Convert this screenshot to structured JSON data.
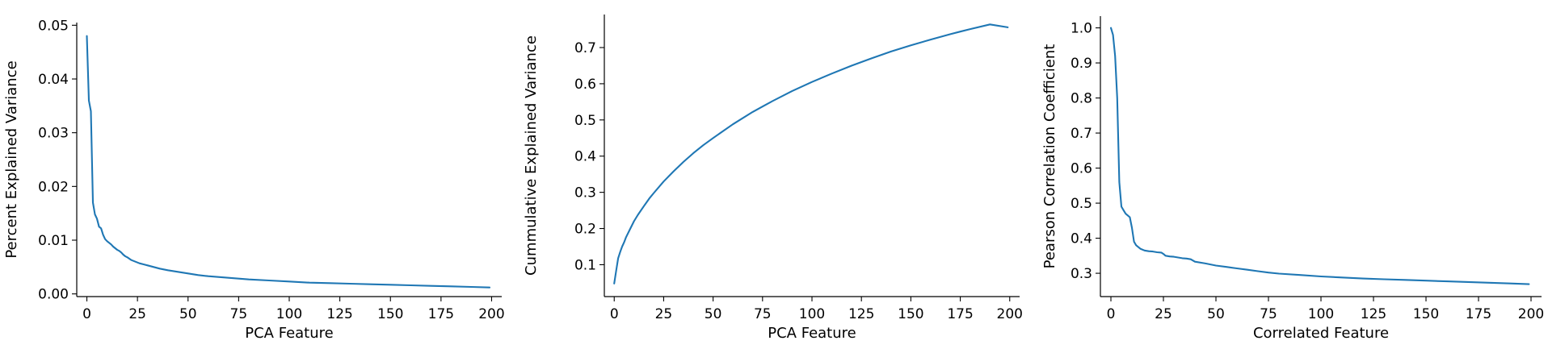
{
  "colors": {
    "line": "#1f77b4",
    "axis": "#000000",
    "background": "#ffffff"
  },
  "chart_data": [
    {
      "type": "line",
      "xlabel": "PCA Feature",
      "ylabel": "Percent Explained Variance",
      "xlim": [
        -5,
        205
      ],
      "ylim": [
        -0.0005,
        0.0505
      ],
      "xticks": [
        0,
        25,
        50,
        75,
        100,
        125,
        150,
        175,
        200
      ],
      "yticks": [
        0.0,
        0.01,
        0.02,
        0.03,
        0.04,
        0.05
      ],
      "xtick_labels": [
        "0",
        "25",
        "50",
        "75",
        "100",
        "125",
        "150",
        "175",
        "200"
      ],
      "ytick_labels": [
        "0.00",
        "0.01",
        "0.02",
        "0.03",
        "0.04",
        "0.05"
      ],
      "spines": "left-bottom",
      "grid": false,
      "series": [
        {
          "x": [
            0,
            1,
            2,
            3,
            4,
            5,
            6,
            7,
            8,
            9,
            10,
            11,
            12,
            13,
            14,
            15,
            16,
            17,
            18,
            19,
            20,
            22,
            24,
            26,
            28,
            30,
            33,
            36,
            40,
            45,
            50,
            55,
            60,
            70,
            80,
            90,
            100,
            110,
            120,
            130,
            140,
            150,
            160,
            170,
            180,
            190,
            199
          ],
          "y": [
            0.048,
            0.036,
            0.034,
            0.017,
            0.0148,
            0.014,
            0.0125,
            0.0122,
            0.011,
            0.0102,
            0.0098,
            0.0095,
            0.0092,
            0.0088,
            0.0085,
            0.0082,
            0.008,
            0.0077,
            0.0073,
            0.007,
            0.0068,
            0.0063,
            0.006,
            0.0057,
            0.0055,
            0.0053,
            0.005,
            0.0047,
            0.0044,
            0.0041,
            0.0038,
            0.0035,
            0.0033,
            0.003,
            0.0027,
            0.0025,
            0.0023,
            0.0021,
            0.002,
            0.0019,
            0.0018,
            0.0017,
            0.0016,
            0.0015,
            0.0014,
            0.0013,
            0.0012
          ]
        }
      ]
    },
    {
      "type": "line",
      "xlabel": "PCA Feature",
      "ylabel": "Cummulative Explained Variance",
      "xlim": [
        -5,
        205
      ],
      "ylim": [
        0.0119,
        0.7913
      ],
      "xticks": [
        0,
        25,
        50,
        75,
        100,
        125,
        150,
        175,
        200
      ],
      "yticks": [
        0.1,
        0.2,
        0.3,
        0.4,
        0.5,
        0.6,
        0.7
      ],
      "xtick_labels": [
        "0",
        "25",
        "50",
        "75",
        "100",
        "125",
        "150",
        "175",
        "200"
      ],
      "ytick_labels": [
        "0.1",
        "0.2",
        "0.3",
        "0.4",
        "0.5",
        "0.6",
        "0.7"
      ],
      "spines": "left-bottom",
      "grid": false,
      "series": [
        {
          "x": [
            0,
            1,
            2,
            3,
            4,
            5,
            6,
            8,
            10,
            12,
            15,
            18,
            20,
            25,
            30,
            35,
            40,
            45,
            50,
            60,
            70,
            75,
            80,
            90,
            100,
            110,
            120,
            125,
            130,
            140,
            150,
            160,
            170,
            175,
            180,
            190,
            199
          ],
          "y": [
            0.048,
            0.084,
            0.118,
            0.135,
            0.15,
            0.162,
            0.176,
            0.198,
            0.22,
            0.238,
            0.262,
            0.285,
            0.298,
            0.33,
            0.358,
            0.384,
            0.408,
            0.43,
            0.45,
            0.488,
            0.522,
            0.537,
            0.552,
            0.58,
            0.605,
            0.628,
            0.65,
            0.66,
            0.67,
            0.689,
            0.706,
            0.722,
            0.737,
            0.744,
            0.751,
            0.764,
            0.756
          ]
        }
      ]
    },
    {
      "type": "line",
      "xlabel": "Correlated Feature",
      "ylabel": "Pearson Correlation Coefficient",
      "xlim": [
        -5,
        205
      ],
      "ylim": [
        0.2335,
        1.0335
      ],
      "xticks": [
        0,
        25,
        50,
        75,
        100,
        125,
        150,
        175,
        200
      ],
      "yticks": [
        0.3,
        0.4,
        0.5,
        0.6,
        0.7,
        0.8,
        0.9,
        1.0
      ],
      "xtick_labels": [
        "0",
        "25",
        "50",
        "75",
        "100",
        "125",
        "150",
        "175",
        "200"
      ],
      "ytick_labels": [
        "0.3",
        "0.4",
        "0.5",
        "0.6",
        "0.7",
        "0.8",
        "0.9",
        "1.0"
      ],
      "spines": "left-bottom",
      "grid": false,
      "series": [
        {
          "x": [
            0,
            1,
            2,
            3,
            4,
            5,
            6,
            7,
            8,
            9,
            10,
            11,
            12,
            14,
            16,
            18,
            20,
            22,
            24,
            25,
            26,
            28,
            30,
            32,
            34,
            36,
            38,
            40,
            45,
            50,
            55,
            60,
            65,
            70,
            75,
            80,
            90,
            100,
            110,
            120,
            130,
            140,
            150,
            160,
            170,
            180,
            190,
            199
          ],
          "y": [
            1.0,
            0.98,
            0.92,
            0.8,
            0.56,
            0.49,
            0.48,
            0.47,
            0.465,
            0.46,
            0.43,
            0.39,
            0.38,
            0.37,
            0.365,
            0.363,
            0.362,
            0.36,
            0.359,
            0.355,
            0.35,
            0.348,
            0.347,
            0.345,
            0.343,
            0.342,
            0.34,
            0.333,
            0.328,
            0.322,
            0.318,
            0.314,
            0.31,
            0.306,
            0.302,
            0.299,
            0.295,
            0.291,
            0.288,
            0.285,
            0.283,
            0.281,
            0.279,
            0.277,
            0.275,
            0.273,
            0.271,
            0.269
          ]
        }
      ]
    }
  ]
}
